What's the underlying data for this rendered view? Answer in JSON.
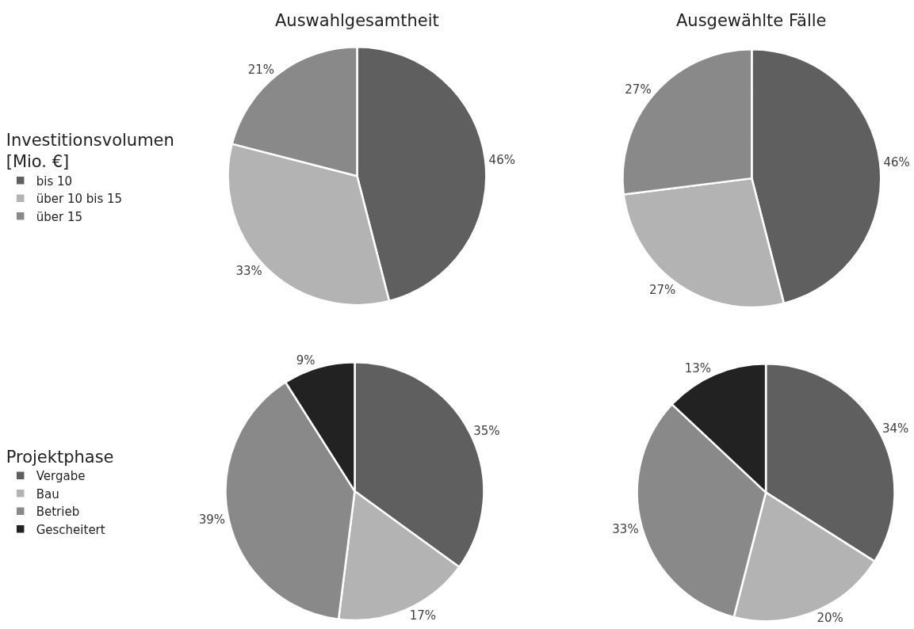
{
  "chart_data": [
    {
      "type": "pie",
      "title": "Auswahlgesamtheit",
      "legend_title": "Investitionsvolumen [Mio. €]",
      "legend": "left",
      "categories": [
        "bis 10",
        "über 10 bis 15",
        "über 15"
      ],
      "values": [
        46,
        33,
        21
      ],
      "value_labels": [
        "46%",
        "33%",
        "21%"
      ],
      "colors": [
        "#5f5f5f",
        "#b3b3b3",
        "#898989"
      ]
    },
    {
      "type": "pie",
      "title": "Ausgewählte Fälle",
      "categories": [
        null,
        null,
        null
      ],
      "values": [
        46,
        27,
        27
      ],
      "value_labels": [
        "46%",
        "27%",
        "27%"
      ],
      "colors": [
        "#5f5f5f",
        "#b3b3b3",
        "#898989"
      ]
    },
    {
      "type": "pie",
      "legend_title": "Projektphase",
      "legend": "left",
      "categories": [
        "Vergabe",
        "Bau",
        "Betrieb",
        "Gescheitert"
      ],
      "values": [
        35,
        17,
        39,
        9
      ],
      "value_labels": [
        "35%",
        "17%",
        "39%",
        "9%"
      ],
      "colors": [
        "#5f5f5f",
        "#b3b3b3",
        "#898989",
        "#222222"
      ]
    },
    {
      "type": "pie",
      "categories": [
        null,
        null,
        null,
        null
      ],
      "values": [
        34,
        20,
        33,
        13
      ],
      "value_labels": [
        "34%",
        "20%",
        "33%",
        "13%"
      ],
      "colors": [
        "#5f5f5f",
        "#b3b3b3",
        "#898989",
        "#222222"
      ]
    }
  ]
}
